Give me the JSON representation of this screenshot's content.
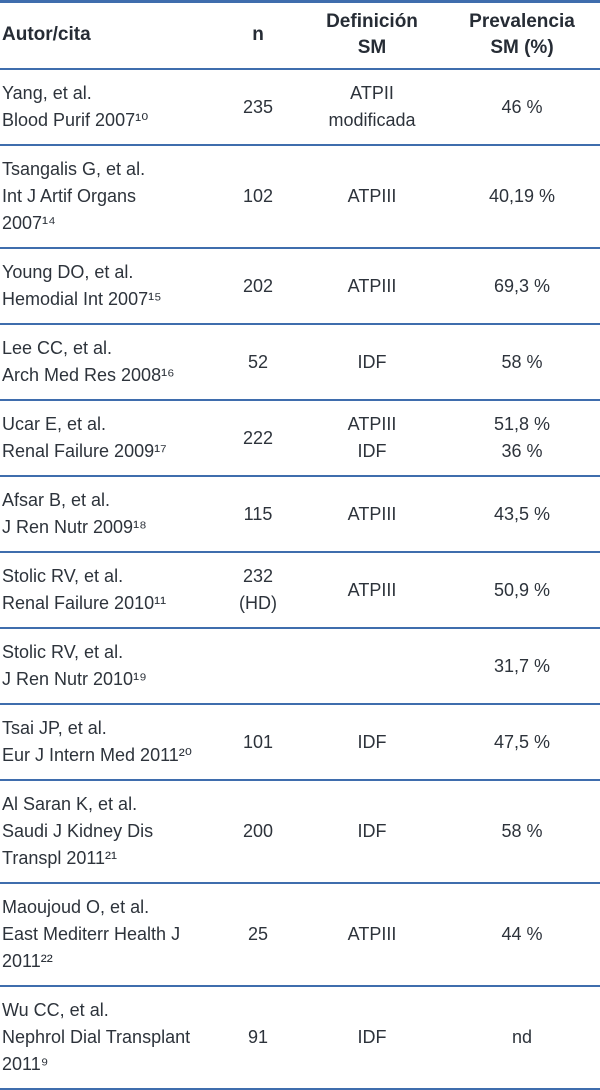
{
  "table": {
    "headers": {
      "author": "Autor/cita",
      "n": "n",
      "definition": "Definición\nSM",
      "prevalence": "Prevalencia\nSM (%)"
    },
    "rows": [
      {
        "author": "Yang, et al.\nBlood Purif 2007¹⁰",
        "n": "235",
        "definition": "ATPII\nmodificada",
        "prevalence": "46 %"
      },
      {
        "author": "Tsangalis G, et al.\nInt J Artif Organs\n2007¹⁴",
        "n": "102",
        "definition": "ATPIII",
        "prevalence": "40,19 %"
      },
      {
        "author": "Young DO, et al.\nHemodial Int 2007¹⁵",
        "n": "202",
        "definition": "ATPIII",
        "prevalence": "69,3 %"
      },
      {
        "author": "Lee CC, et al.\nArch Med Res 2008¹⁶",
        "n": "52",
        "definition": "IDF",
        "prevalence": "58 %"
      },
      {
        "author": "Ucar E, et al.\nRenal Failure 2009¹⁷",
        "n": "222",
        "definition": "ATPIII\nIDF",
        "prevalence": "51,8 %\n36 %"
      },
      {
        "author": "Afsar B, et al.\nJ Ren Nutr 2009¹⁸",
        "n": "115",
        "definition": "ATPIII",
        "prevalence": "43,5 %"
      },
      {
        "author": "Stolic RV, et al.\nRenal Failure 2010¹¹",
        "n": "232\n(HD)",
        "definition": "ATPIII",
        "prevalence": "50,9 %"
      },
      {
        "author": "Stolic RV, et al.\nJ Ren Nutr 2010¹⁹",
        "n": "",
        "definition": "",
        "prevalence": "31,7 %"
      },
      {
        "author": "Tsai JP, et al.\nEur J Intern Med 2011²⁰",
        "n": "101",
        "definition": "IDF",
        "prevalence": "47,5 %"
      },
      {
        "author": "Al Saran K, et al.\nSaudi J Kidney Dis\nTranspl 2011²¹",
        "n": "200",
        "definition": "IDF",
        "prevalence": "58 %"
      },
      {
        "author": "Maoujoud O, et al.\nEast Mediterr Health J\n2011²²",
        "n": "25",
        "definition": "ATPIII",
        "prevalence": "44 %"
      },
      {
        "author": "Wu CC, et al.\nNephrol Dial Transplant\n2011⁹",
        "n": "91",
        "definition": "IDF",
        "prevalence": "nd"
      }
    ]
  },
  "colors": {
    "rule_blue": "#3f6dad",
    "text": "#2d333b",
    "header_text": "#262c35"
  }
}
